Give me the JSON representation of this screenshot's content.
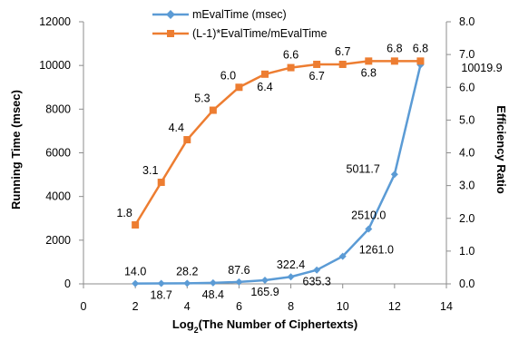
{
  "chart_data": {
    "type": "line",
    "title": "",
    "xlabel": "Log2(The Number of Ciphertexts)",
    "xlabel_main": "Log",
    "xlabel_sub": "2",
    "xlabel_rest": "(The Number of Ciphertexts)",
    "ylabel": "Running Time (msec)",
    "y2label": "Efficiency Ratio",
    "xlim": [
      0,
      14
    ],
    "ylim": [
      0,
      12000
    ],
    "y2lim": [
      0,
      8
    ],
    "x_ticks": [
      "0",
      "2",
      "4",
      "6",
      "8",
      "10",
      "12",
      "14"
    ],
    "y_ticks": [
      "0",
      "2000",
      "4000",
      "6000",
      "8000",
      "10000",
      "12000"
    ],
    "y2_ticks": [
      "0.0",
      "1.0",
      "2.0",
      "3.0",
      "4.0",
      "5.0",
      "6.0",
      "7.0",
      "8.0"
    ],
    "grid": false,
    "legend_position": "top-center",
    "series": [
      {
        "name": "mEvalTime (msec)",
        "axis": "left",
        "color": "#5b9bd5",
        "marker": "diamond",
        "x": [
          2,
          3,
          4,
          5,
          6,
          7,
          8,
          9,
          10,
          11,
          12,
          13
        ],
        "values": [
          14.0,
          18.7,
          28.2,
          48.4,
          87.6,
          165.9,
          322.4,
          635.3,
          1261.0,
          2510.0,
          5011.7,
          10019.9
        ],
        "labels": [
          "14.0",
          "18.7",
          "28.2",
          "48.4",
          "87.6",
          "165.9",
          "322.4",
          "635.3",
          "1261.0",
          "2510.0",
          "5011.7",
          "10019.9"
        ]
      },
      {
        "name": "(L-1)*EvalTime/mEvalTime",
        "axis": "right",
        "color": "#ed7d31",
        "marker": "square",
        "x": [
          2,
          3,
          4,
          5,
          6,
          7,
          8,
          9,
          10,
          11,
          12,
          13
        ],
        "values": [
          1.8,
          3.1,
          4.4,
          5.3,
          6.0,
          6.4,
          6.6,
          6.7,
          6.7,
          6.8,
          6.8,
          6.8
        ],
        "labels": [
          "1.8",
          "3.1",
          "4.4",
          "5.3",
          "6.0",
          "6.4",
          "6.6",
          "6.7",
          "6.7",
          "6.8",
          "6.8",
          "6.8"
        ]
      }
    ]
  }
}
